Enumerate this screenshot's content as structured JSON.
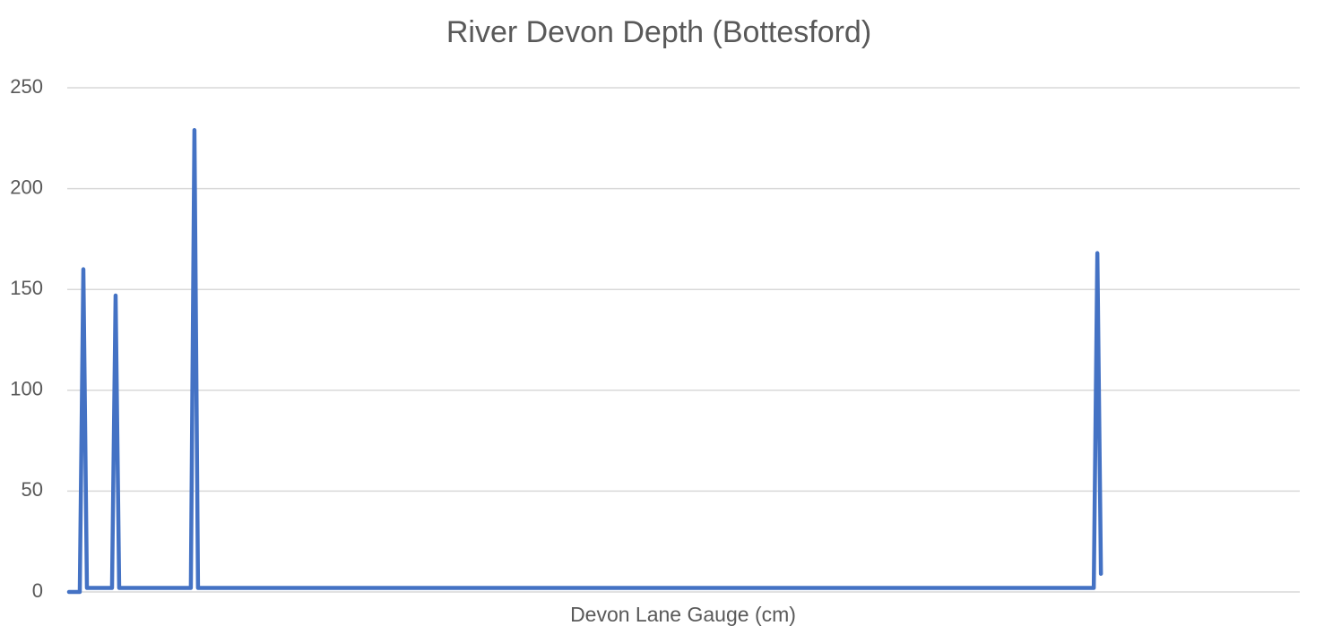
{
  "chart_data": {
    "type": "line",
    "title": "River Devon Depth (Bottesford)",
    "x_label": "Devon Lane Gauge (cm)",
    "categories": [
      null,
      null,
      null,
      null,
      null,
      null,
      null,
      null,
      null,
      null,
      null,
      null,
      null,
      null,
      null,
      null,
      null,
      null,
      null,
      null,
      null,
      null,
      null,
      null,
      null,
      null,
      null,
      null,
      null,
      null,
      null,
      null,
      null,
      null,
      null,
      null,
      null,
      null,
      null,
      null,
      null,
      null,
      null,
      null,
      null,
      null,
      null,
      null,
      null,
      null,
      null,
      null,
      null,
      null,
      null,
      null,
      null,
      null,
      null,
      null,
      null,
      null,
      null,
      null,
      null,
      null,
      null,
      null,
      null,
      null,
      null,
      null,
      null,
      null,
      null,
      null,
      null,
      null,
      null,
      null,
      null,
      null,
      null,
      null,
      null,
      null,
      null,
      null,
      null,
      null,
      null,
      null,
      null,
      null,
      null,
      null,
      null,
      null,
      null,
      null,
      null,
      null,
      null,
      null,
      null,
      null,
      null,
      null,
      null,
      null,
      null,
      null,
      null,
      null,
      null,
      null,
      null,
      null,
      null,
      null,
      null,
      null,
      null,
      null,
      null,
      null,
      null,
      null,
      null,
      null,
      null,
      null,
      null,
      null,
      null,
      null,
      null,
      null,
      null,
      null,
      null,
      null,
      null,
      null,
      null,
      null,
      null,
      null,
      null,
      null,
      null,
      null,
      null,
      null,
      null,
      null,
      null,
      null,
      null,
      null,
      null,
      null,
      null,
      null,
      null,
      null,
      null,
      null,
      null,
      null,
      null,
      null,
      null,
      null,
      null,
      null,
      null,
      null,
      null,
      null,
      null,
      null,
      null,
      null,
      null,
      null,
      null,
      null,
      null,
      null,
      null,
      null,
      null,
      null,
      null,
      null,
      null,
      null,
      null,
      null,
      null,
      null,
      null,
      null,
      null,
      null,
      null,
      null,
      null,
      null,
      null,
      null,
      null,
      null,
      null,
      null,
      null,
      null,
      null,
      null,
      null,
      null,
      null,
      null,
      null,
      null,
      null,
      null,
      null,
      null,
      null,
      null,
      null,
      null,
      null,
      null,
      null,
      null,
      null,
      null,
      null,
      null,
      null,
      null,
      null,
      null,
      null,
      null,
      null,
      null,
      null,
      null,
      null,
      null,
      null,
      null,
      null,
      null,
      null,
      null,
      null,
      null,
      null,
      null,
      null,
      null,
      null,
      null,
      null,
      null,
      null,
      null,
      null,
      null,
      null,
      null,
      null,
      null,
      null,
      null,
      null,
      null,
      null,
      null,
      null,
      null,
      null,
      null,
      null,
      null,
      null,
      null,
      null,
      null,
      null,
      null,
      null,
      null,
      null,
      null,
      null,
      null,
      null,
      null,
      null,
      null,
      null,
      null,
      null,
      null,
      null,
      null,
      null,
      null,
      null,
      null,
      null,
      null,
      null,
      null,
      null,
      null,
      null,
      null,
      null,
      null,
      null,
      null,
      null,
      null,
      null,
      null,
      null,
      null,
      null,
      null,
      null,
      null,
      null,
      null,
      null,
      null,
      null,
      null
    ],
    "series": [
      {
        "name": "Devon Lane Gauge (cm)",
        "color": "#4472c4",
        "values": [
          0,
          0,
          0,
          0,
          160,
          2,
          2,
          2,
          2,
          2,
          2,
          2,
          2,
          147,
          2,
          2,
          2,
          2,
          2,
          2,
          2,
          2,
          2,
          2,
          2,
          2,
          2,
          2,
          2,
          2,
          2,
          2,
          2,
          2,
          2,
          229,
          2,
          2,
          2,
          2,
          2,
          2,
          2,
          2,
          2,
          2,
          2,
          2,
          2,
          2,
          2,
          2,
          2,
          2,
          2,
          2,
          2,
          2,
          2,
          2,
          2,
          2,
          2,
          2,
          2,
          2,
          2,
          2,
          2,
          2,
          2,
          2,
          2,
          2,
          2,
          2,
          2,
          2,
          2,
          2,
          2,
          2,
          2,
          2,
          2,
          2,
          2,
          2,
          2,
          2,
          2,
          2,
          2,
          2,
          2,
          2,
          2,
          2,
          2,
          2,
          2,
          2,
          2,
          2,
          2,
          2,
          2,
          2,
          2,
          2,
          2,
          2,
          2,
          2,
          2,
          2,
          2,
          2,
          2,
          2,
          2,
          2,
          2,
          2,
          2,
          2,
          2,
          2,
          2,
          2,
          2,
          2,
          2,
          2,
          2,
          2,
          2,
          2,
          2,
          2,
          2,
          2,
          2,
          2,
          2,
          2,
          2,
          2,
          2,
          2,
          2,
          2,
          2,
          2,
          2,
          2,
          2,
          2,
          2,
          2,
          2,
          2,
          2,
          2,
          2,
          2,
          2,
          2,
          2,
          2,
          2,
          2,
          2,
          2,
          2,
          2,
          2,
          2,
          2,
          2,
          2,
          2,
          2,
          2,
          2,
          2,
          2,
          2,
          2,
          2,
          2,
          2,
          2,
          2,
          2,
          2,
          2,
          2,
          2,
          2,
          2,
          2,
          2,
          2,
          2,
          2,
          2,
          2,
          2,
          2,
          2,
          2,
          2,
          2,
          2,
          2,
          2,
          2,
          2,
          2,
          2,
          2,
          2,
          2,
          2,
          2,
          2,
          2,
          2,
          2,
          2,
          2,
          2,
          2,
          2,
          2,
          2,
          2,
          2,
          2,
          2,
          2,
          2,
          2,
          2,
          2,
          2,
          2,
          2,
          2,
          2,
          2,
          2,
          2,
          2,
          2,
          2,
          2,
          2,
          2,
          2,
          2,
          2,
          2,
          2,
          2,
          2,
          2,
          2,
          2,
          2,
          2,
          2,
          2,
          2,
          2,
          2,
          2,
          2,
          2,
          2,
          2,
          2,
          2,
          2,
          2,
          2,
          168,
          9,
          null,
          null,
          null,
          null,
          null,
          null,
          null,
          null,
          null,
          null,
          null,
          null,
          null,
          null,
          null,
          null,
          null,
          null,
          null,
          null,
          null,
          null,
          null,
          null,
          null,
          null,
          null,
          null,
          null,
          null,
          null,
          null,
          null,
          null,
          null,
          null,
          null,
          null,
          null,
          null,
          null,
          null,
          null,
          null,
          null,
          null,
          null,
          null,
          null,
          null,
          null,
          null,
          null,
          null,
          null
        ]
      }
    ],
    "ylim": [
      0,
      250
    ],
    "yticks": [
      0,
      50,
      100,
      150,
      200,
      250
    ],
    "grid": true
  }
}
